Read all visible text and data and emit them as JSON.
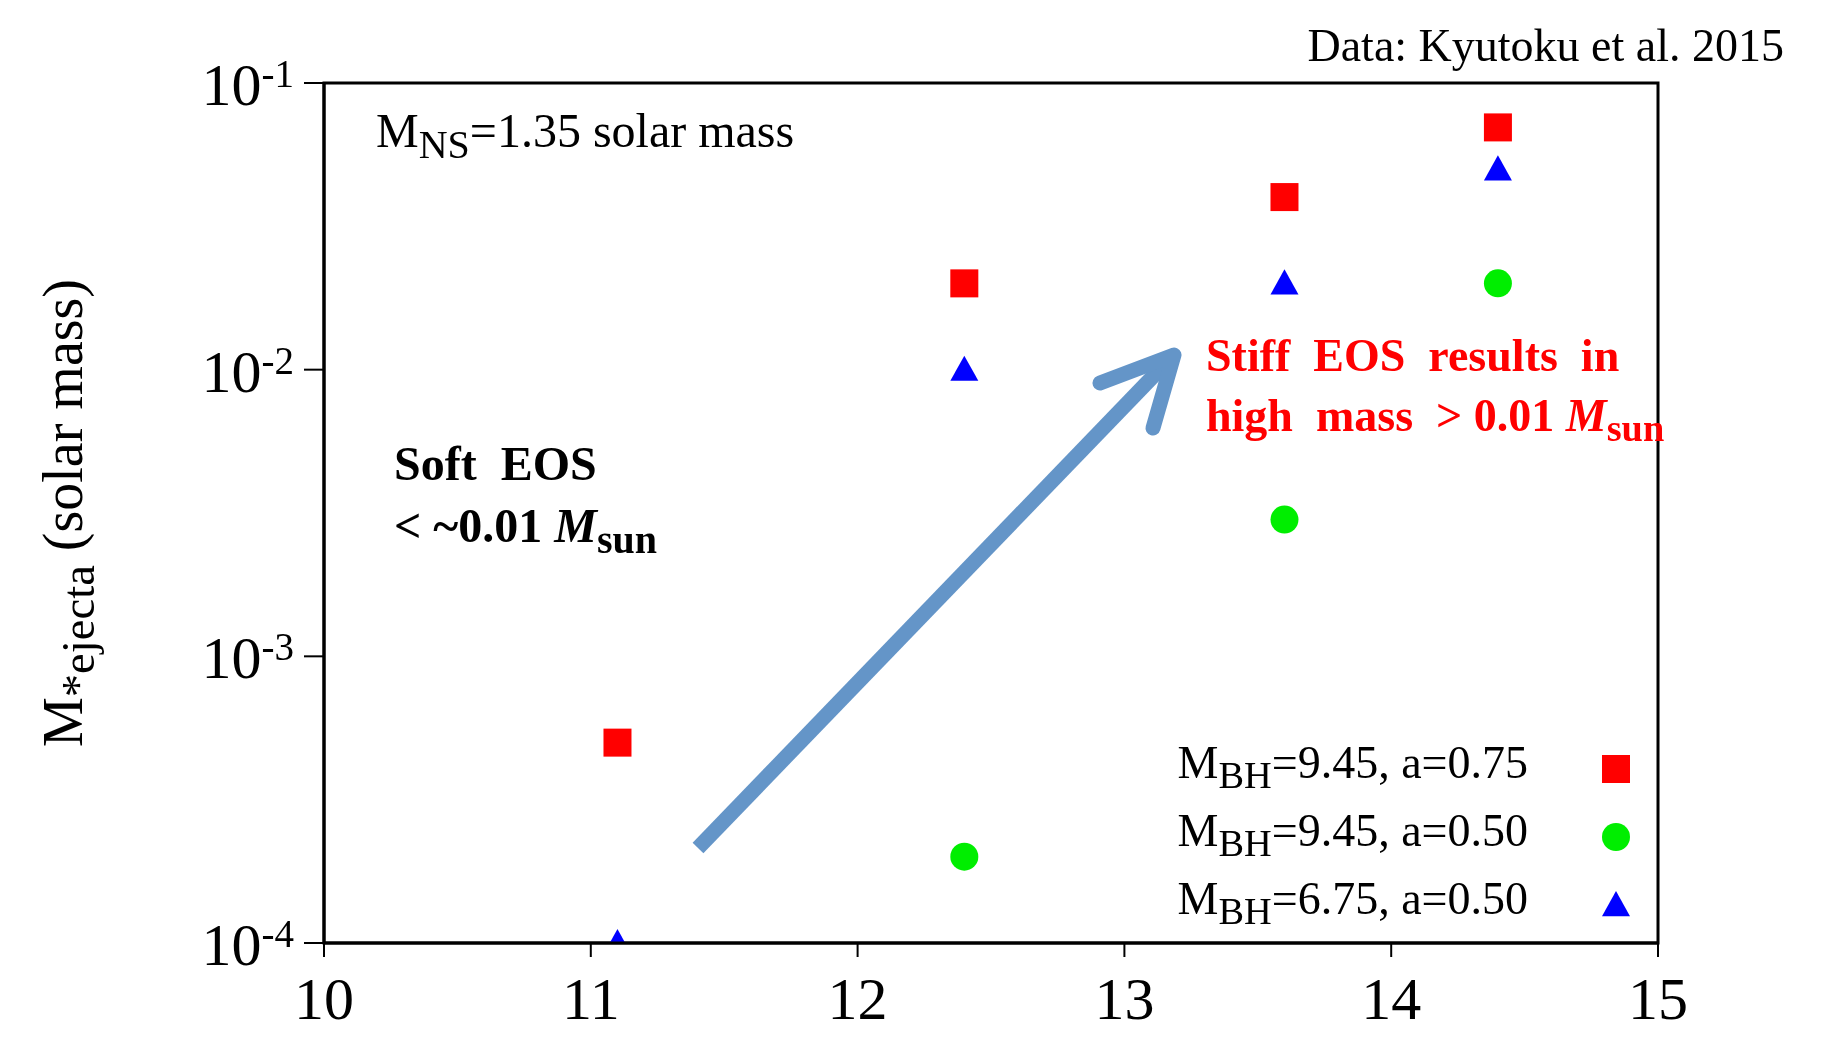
{
  "chart_data": {
    "type": "scatter",
    "ylabel": "M$_{*ejecta}$ (solar mass)",
    "x": [
      11.1,
      12.4,
      13.6,
      14.4
    ],
    "series": [
      {
        "name": "M$_{BH}$=9.45, a=0.75",
        "color": "#ff0000",
        "marker": "square",
        "values": [
          0.0005,
          0.02,
          0.04,
          0.07
        ]
      },
      {
        "name": "M$_{BH}$=9.45, a=0.50",
        "color": "#00ee00",
        "marker": "circle",
        "values": [
          null,
          0.0002,
          0.003,
          0.02
        ]
      },
      {
        "name": "M$_{BH}$=6.75, a=0.50",
        "color": "#0000ff",
        "marker": "triangle",
        "values": [
          0.0001,
          0.01,
          0.02,
          0.05
        ]
      }
    ],
    "log": "y",
    "xlim": [
      10,
      15
    ],
    "xticks": [
      10,
      11,
      12,
      13,
      14,
      15
    ],
    "ylim": [
      0.0001,
      0.1
    ],
    "yticks": [
      {
        "value": 0.0001,
        "label": "10$^{-4}$"
      },
      {
        "value": 0.001,
        "label": "10$^{-3}$"
      },
      {
        "value": 0.01,
        "label": "10$^{-2}$"
      },
      {
        "value": 0.1,
        "label": "10$^{-1}$"
      }
    ],
    "grid": false,
    "legend": "bottom right",
    "annotations": [
      "Data: Kyutoku et al. 2015",
      "M$_{NS}$=1.35 solar mass",
      "Soft  EOS\n< ~0.01 M$_{sun}$",
      "Stiff  EOS  results  in\nhigh  mass  > 0.01 M$_{sun}$"
    ]
  }
}
